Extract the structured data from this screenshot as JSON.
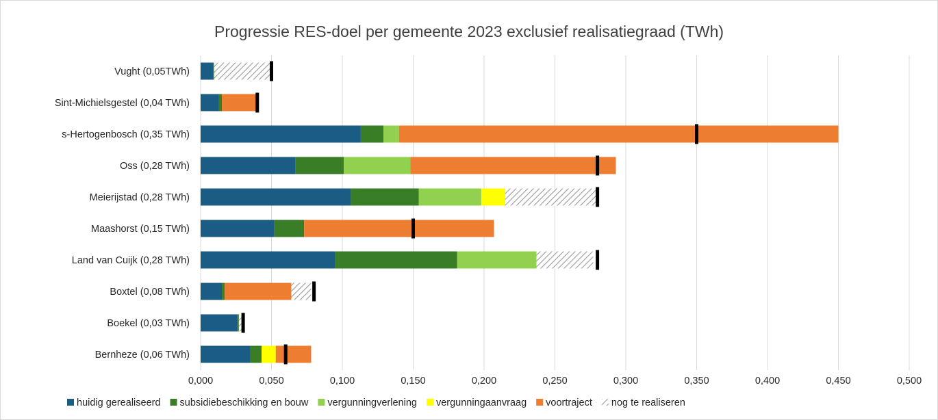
{
  "chart_data": {
    "type": "bar",
    "orientation": "horizontal",
    "stacked": true,
    "title": "Progressie RES-doel per gemeente 2023 exclusief realisatiegraad (TWh)",
    "xlabel": "",
    "ylabel": "",
    "xlim": [
      0,
      0.5
    ],
    "x_ticks": [
      "0,000",
      "0,050",
      "0,100",
      "0,150",
      "0,200",
      "0,250",
      "0,300",
      "0,350",
      "0,400",
      "0,450",
      "0,500"
    ],
    "grid": "vertical",
    "legend_position": "bottom",
    "categories": [
      "Vught (0,05TWh)",
      "Sint-Michielsgestel (0,04 TWh)",
      "s-Hertogenbosch (0,35 TWh)",
      "Oss (0,28 TWh)",
      "Meierijstad (0,28 TWh)",
      "Maashorst (0,15 TWh)",
      "Land van Cuijk (0,28 TWh)",
      "Boxtel (0,08 TWh)",
      "Boekel (0,03 TWh)",
      "Bernheze (0,06 TWh)"
    ],
    "series": [
      {
        "name": "huidig gerealiseerd",
        "color": "#1b5c84",
        "pattern": "solid",
        "values": [
          0.009,
          0.013,
          0.113,
          0.067,
          0.106,
          0.052,
          0.095,
          0.015,
          0.026,
          0.035
        ]
      },
      {
        "name": "subsidiebeschikking en bouw",
        "color": "#3a7d27",
        "pattern": "solid",
        "values": [
          0.0005,
          0.002,
          0.016,
          0.034,
          0.048,
          0.021,
          0.086,
          0.002,
          0.001,
          0.008
        ]
      },
      {
        "name": "vergunningverlening",
        "color": "#92d050",
        "pattern": "solid",
        "values": [
          0,
          0,
          0.011,
          0.047,
          0.044,
          0,
          0.056,
          0,
          0,
          0
        ]
      },
      {
        "name": "vergunningaanvraag",
        "color": "#ffff00",
        "pattern": "solid",
        "values": [
          0,
          0,
          0,
          0,
          0.017,
          0,
          0,
          0,
          0,
          0.01
        ]
      },
      {
        "name": "voortraject",
        "color": "#ed7d31",
        "pattern": "solid",
        "values": [
          0,
          0.025,
          0.31,
          0.145,
          0,
          0.134,
          0,
          0.047,
          0,
          0.025
        ]
      },
      {
        "name": "nog te realiseren",
        "color": "#a6a6a6",
        "pattern": "hatch",
        "values": [
          0.04,
          0,
          0,
          0,
          0.065,
          0,
          0.04,
          0.014,
          0.002,
          0
        ]
      }
    ],
    "targets": [
      0.05,
      0.04,
      0.35,
      0.28,
      0.28,
      0.15,
      0.28,
      0.08,
      0.03,
      0.06
    ],
    "target_marker_color": "#000000"
  }
}
